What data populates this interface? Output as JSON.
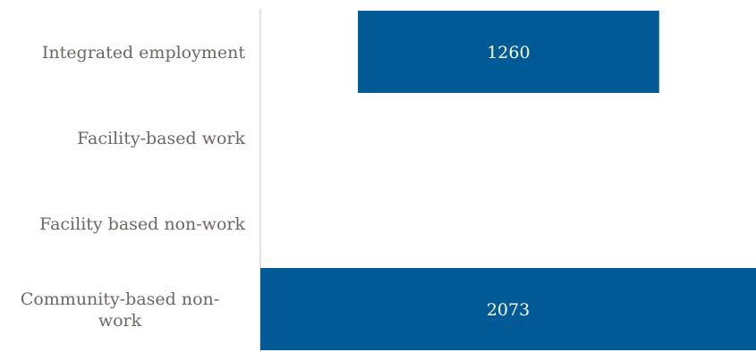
{
  "chart_data": {
    "type": "bar",
    "orientation": "horizontal",
    "title": "",
    "xlabel": "",
    "ylabel": "",
    "categories": [
      "Integrated employment",
      "Facility-based work",
      "Facility based non-work",
      "Community-based non-work"
    ],
    "category_label_lines": [
      [
        "Integrated employment"
      ],
      [
        "Facility-based work"
      ],
      [
        "Facility based non-work"
      ],
      [
        "Community-based non-",
        "work"
      ]
    ],
    "series": [
      {
        "values": [
          1260,
          0,
          0,
          2073
        ],
        "value_labels": [
          "1260",
          "",
          "",
          "2073"
        ],
        "bar_starts": [
          408,
          0,
          0,
          0
        ]
      }
    ],
    "xlim": [
      0,
      2073
    ],
    "grid": false,
    "legend": "none",
    "colors": {
      "bar": "#005a96",
      "axis": "#d9d9d9",
      "category_text": "#6e6662",
      "value_text": "#ffffff"
    }
  }
}
